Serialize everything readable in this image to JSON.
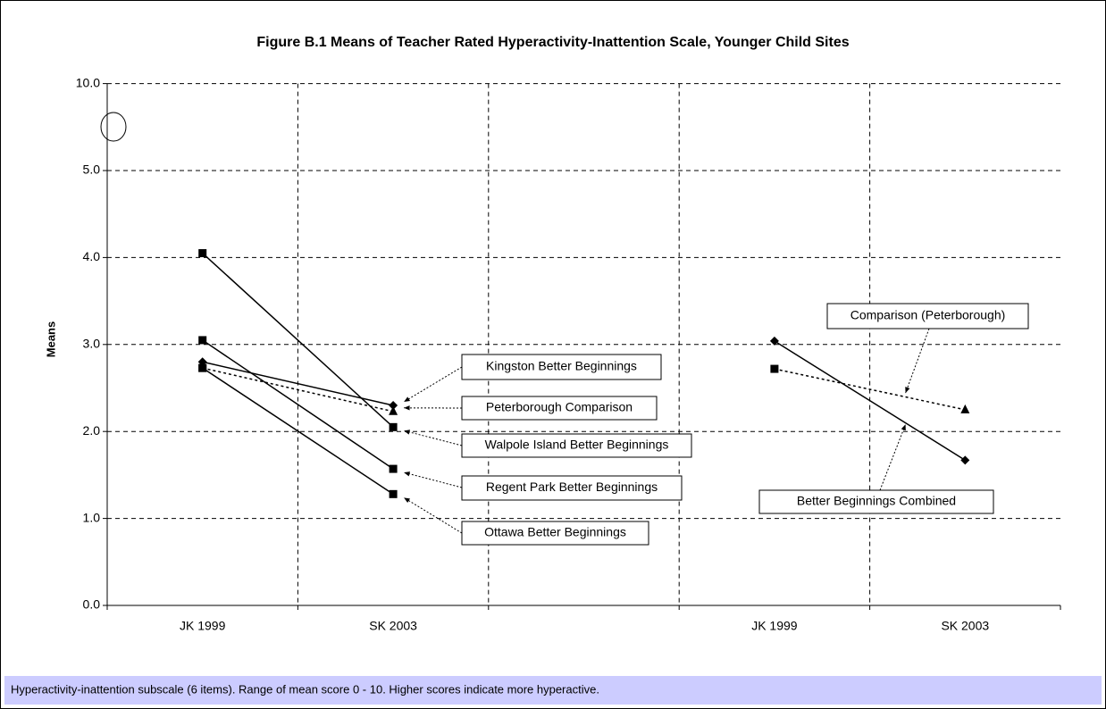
{
  "chart_data": {
    "type": "line",
    "title": "Figure B.1  Means of Teacher Rated Hyperactivity-Inattention Scale, Younger Child Sites",
    "y_label": "Means",
    "categories": [
      "JK 1999",
      "SK 2003",
      null,
      "JK 1999",
      "SK 2003"
    ],
    "ylim": [
      0,
      10
    ],
    "yticks": [
      {
        "value": 0,
        "label": "0.0"
      },
      {
        "value": 1,
        "label": "1.0"
      },
      {
        "value": 2,
        "label": "2.0"
      },
      {
        "value": 3,
        "label": "3.0"
      },
      {
        "value": 4,
        "label": "4.0"
      },
      {
        "value": 5,
        "label": "5.0"
      },
      {
        "value": 10,
        "label": "10.0"
      }
    ],
    "grid": true,
    "series": [
      {
        "name": "Kingston Better Beginnings",
        "color": "#000000",
        "dash": "solid",
        "values": [
          2.8,
          2.3,
          null,
          null,
          null
        ],
        "markers": [
          "diamond",
          "diamond",
          null,
          null,
          null
        ]
      },
      {
        "name": "Peterborough Comparison",
        "color": "#000000",
        "dash": "dotted",
        "values": [
          2.73,
          2.23,
          null,
          null,
          null
        ],
        "markers": [
          "square",
          "triangle",
          null,
          null,
          null
        ]
      },
      {
        "name": "Walpole Island Better Beginnings",
        "color": "#000000",
        "dash": "solid",
        "values": [
          4.05,
          2.05,
          null,
          null,
          null
        ],
        "markers": [
          "square",
          "square",
          null,
          null,
          null
        ]
      },
      {
        "name": "Regent Park Better Beginnings",
        "color": "#000000",
        "dash": "solid",
        "values": [
          3.05,
          1.57,
          null,
          null,
          null
        ],
        "markers": [
          "square",
          "square",
          null,
          null,
          null
        ]
      },
      {
        "name": "Ottawa Better Beginnings",
        "color": "#000000",
        "dash": "solid",
        "values": [
          2.73,
          1.28,
          null,
          null,
          null
        ],
        "markers": [
          "square",
          "square",
          null,
          null,
          null
        ]
      },
      {
        "name": "Better Beginnings Combined",
        "color": "#000000",
        "dash": "solid",
        "values": [
          null,
          null,
          null,
          3.04,
          1.67
        ],
        "markers": [
          null,
          null,
          null,
          "diamond",
          "diamond"
        ]
      },
      {
        "name": "Comparison (Peterborough)",
        "color": "#000000",
        "dash": "dotted",
        "values": [
          null,
          null,
          null,
          2.72,
          2.25
        ],
        "markers": [
          null,
          null,
          null,
          "square",
          "triangle"
        ]
      }
    ],
    "footnote": "Hyperactivity-inattention subscale (6 items). Range of mean score 0 - 10. Higher scores indicate more hyperactive."
  }
}
